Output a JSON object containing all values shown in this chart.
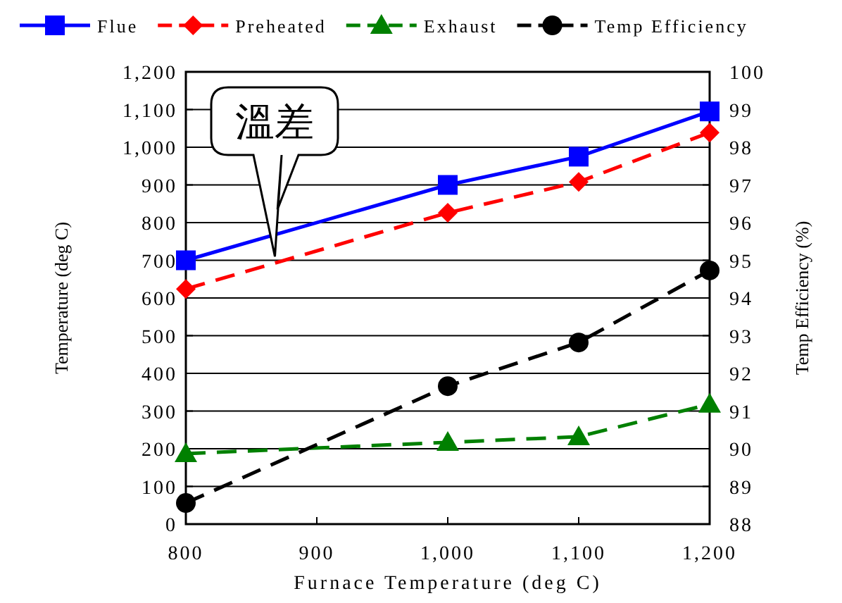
{
  "chart_data": {
    "type": "line",
    "xlabel": "Furnace Temperature (deg C)",
    "ylabel": "Temperature (deg C)",
    "y2label": "Temp Efficiency (%)",
    "x": [
      800,
      1000,
      1100,
      1200
    ],
    "xlim": [
      800,
      1200
    ],
    "xticks": [
      800,
      900,
      {
        "value": 1000,
        "label": "1,000"
      },
      {
        "value": 1100,
        "label": "1,100"
      },
      {
        "value": 1200,
        "label": "1,200"
      }
    ],
    "ylim": [
      0,
      1200
    ],
    "yticks": [
      0,
      100,
      200,
      300,
      400,
      500,
      600,
      700,
      800,
      900,
      {
        "value": 1000,
        "label": "1,000"
      },
      {
        "value": 1100,
        "label": "1,100"
      },
      {
        "value": 1200,
        "label": "1,200"
      }
    ],
    "y2lim": [
      88,
      100
    ],
    "y2ticks": [
      88,
      89,
      90,
      91,
      92,
      93,
      94,
      95,
      96,
      97,
      98,
      99,
      100
    ],
    "grid": "y",
    "legend": "top",
    "series": [
      {
        "name": "Flue",
        "color": "#0000ff",
        "marker": "square",
        "line_style": "solid",
        "values": [
          700,
          900,
          975,
          1095
        ]
      },
      {
        "name": "Preheated",
        "color": "#ff0000",
        "marker": "diamond",
        "line_style": "dashed",
        "values": [
          624,
          826,
          908,
          1039
        ]
      },
      {
        "name": "Exhaust",
        "color": "#008000",
        "marker": "triangle",
        "line_style": "dashed",
        "values": [
          187,
          217,
          232,
          318
        ]
      },
      {
        "name": "Temp Efficiency",
        "color": "#000000",
        "marker": "circle",
        "line_style": "dashed",
        "axis": "y2",
        "values": [
          88.56,
          91.66,
          92.82,
          94.73
        ]
      }
    ],
    "annotations": [
      "溫差"
    ]
  }
}
